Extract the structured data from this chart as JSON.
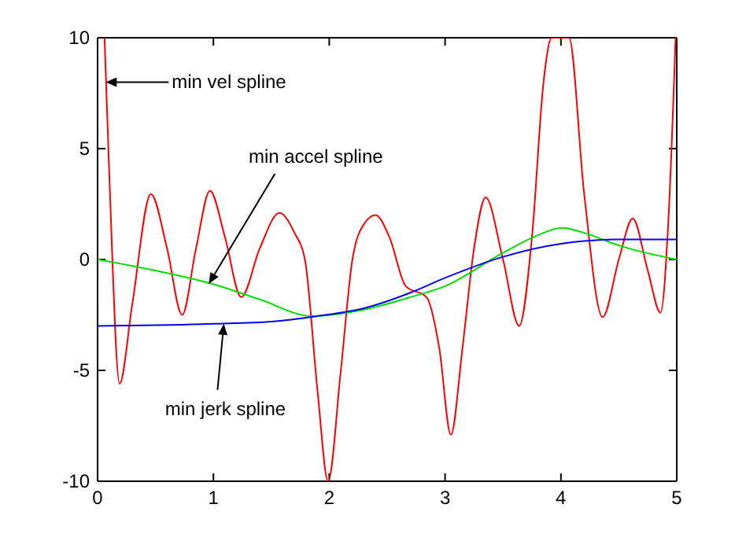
{
  "chart_data": {
    "type": "line",
    "xlim": [
      0,
      5
    ],
    "ylim": [
      -10,
      10
    ],
    "xticks": [
      0,
      1,
      2,
      3,
      4,
      5
    ],
    "yticks": [
      -10,
      -5,
      0,
      5,
      10
    ],
    "grid": false,
    "marker": "none",
    "line_style": "solid",
    "series": [
      {
        "color": "#ff0000",
        "x": [
          0.06,
          0.1,
          0.19,
          0.3,
          0.46,
          0.6,
          0.73,
          0.85,
          0.97,
          1.1,
          1.24,
          1.4,
          1.57,
          1.7,
          1.79,
          1.9,
          1.99,
          2.1,
          2.2,
          2.3,
          2.4,
          2.52,
          2.66,
          2.84,
          2.95,
          3.05,
          3.15,
          3.25,
          3.35,
          3.5,
          3.64,
          3.75,
          3.85,
          3.92,
          4.0,
          4.07,
          4.2,
          4.36,
          4.5,
          4.62,
          4.75,
          4.86,
          4.93,
          4.99
        ],
        "values": [
          10,
          4,
          -5.6,
          -2,
          2.95,
          0.5,
          -2.5,
          0.5,
          3.1,
          1,
          -1.7,
          0.5,
          2.1,
          1.2,
          0,
          -6,
          -10,
          -5,
          0,
          1.6,
          2.0,
          1,
          -1.2,
          -1.7,
          -4,
          -7.9,
          -4,
          0.5,
          2.8,
          0,
          -3.0,
          1,
          8,
          10,
          10,
          10,
          3,
          -2.6,
          0,
          1.85,
          -0.5,
          -2.4,
          2,
          10
        ]
      },
      {
        "color": "#00dd00",
        "x": [
          0,
          0.5,
          0.99,
          1.4,
          1.85,
          2.3,
          2.7,
          3,
          3.48,
          3.79,
          4.01,
          4.2,
          4.52,
          5
        ],
        "values": [
          0,
          -0.5,
          -1.1,
          -1.8,
          -2.55,
          -2.26,
          -1.7,
          -1.2,
          0.24,
          1.07,
          1.43,
          1.2,
          0.6,
          0
        ]
      },
      {
        "color": "#0000ff",
        "x": [
          0,
          1,
          1.5,
          1.9,
          2.3,
          2.7,
          3,
          3.5,
          4,
          4.2,
          4.45,
          5
        ],
        "values": [
          -3,
          -2.9,
          -2.8,
          -2.55,
          -2.2,
          -1.5,
          -0.83,
          0.12,
          0.71,
          0.83,
          0.9,
          0.9
        ]
      }
    ],
    "annotations": [
      {
        "text": "min vel spline",
        "x": 0.07,
        "y": 8
      },
      {
        "text": "min accel spline",
        "x": 0.96,
        "y": -1.1
      },
      {
        "text": "min jerk spline",
        "x": 1.09,
        "y": -2.9
      }
    ]
  }
}
